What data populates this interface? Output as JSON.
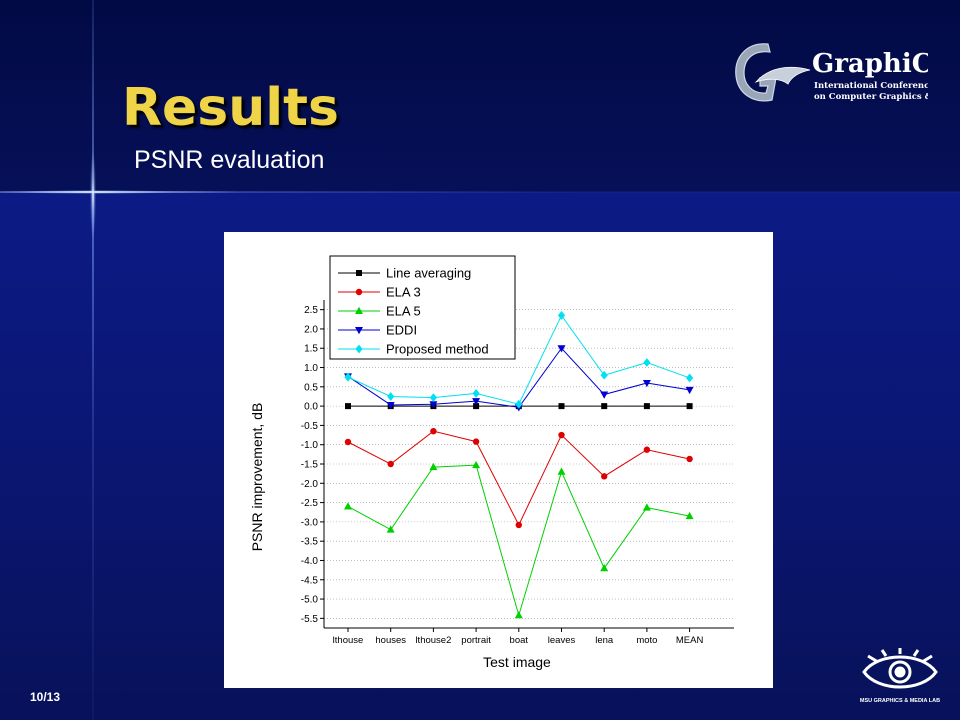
{
  "slide": {
    "title": "Results",
    "subtitle": "PSNR evaluation",
    "page_number": "10/13"
  },
  "logo": {
    "name": "GraphiCon",
    "line1": "International   Conference",
    "line2": "on Computer Graphics & Vision"
  },
  "msu_logo": {
    "text": "MSU GRAPHICS & MEDIA LAB"
  },
  "colors": {
    "title": "#f0d448",
    "background": "#0a1466"
  },
  "chart_data": {
    "type": "line",
    "xlabel": "Test image",
    "ylabel": "PSNR improvement, dB",
    "categories": [
      "lthouse",
      "houses",
      "lthouse2",
      "portrait",
      "boat",
      "leaves",
      "lena",
      "moto",
      "MEAN"
    ],
    "ylim": [
      -5.75,
      2.75
    ],
    "yticks": [
      "2.5",
      "2.0",
      "1.5",
      "1.0",
      "0.5",
      "0.0",
      "-0.5",
      "-1.0",
      "-1.5",
      "-2.0",
      "-2.5",
      "-3.0",
      "-3.5",
      "-4.0",
      "-4.5",
      "-5.0",
      "-5.5"
    ],
    "legend_position": "top-right",
    "grid": true,
    "series": [
      {
        "name": "Line averaging",
        "color": "#000000",
        "marker": "square",
        "values": [
          0.0,
          0.0,
          0.0,
          0.0,
          0.0,
          0.0,
          0.0,
          0.0,
          0.0
        ]
      },
      {
        "name": "ELA 3",
        "color": "#e00000",
        "marker": "circle",
        "values": [
          -0.93,
          -1.5,
          -0.65,
          -0.92,
          -3.08,
          -0.75,
          -1.82,
          -1.13,
          -1.37
        ]
      },
      {
        "name": "ELA 5",
        "color": "#00d000",
        "marker": "triangle-up",
        "values": [
          -2.6,
          -3.2,
          -1.58,
          -1.53,
          -5.42,
          -1.7,
          -4.2,
          -2.63,
          -2.85
        ]
      },
      {
        "name": "EDDI",
        "color": "#0000d0",
        "marker": "triangle-down",
        "values": [
          0.77,
          0.03,
          0.05,
          0.13,
          -0.03,
          1.5,
          0.3,
          0.6,
          0.42
        ]
      },
      {
        "name": "Proposed method",
        "color": "#00e0f0",
        "marker": "diamond",
        "values": [
          0.75,
          0.25,
          0.22,
          0.33,
          0.05,
          2.35,
          0.8,
          1.13,
          0.73
        ]
      }
    ]
  }
}
